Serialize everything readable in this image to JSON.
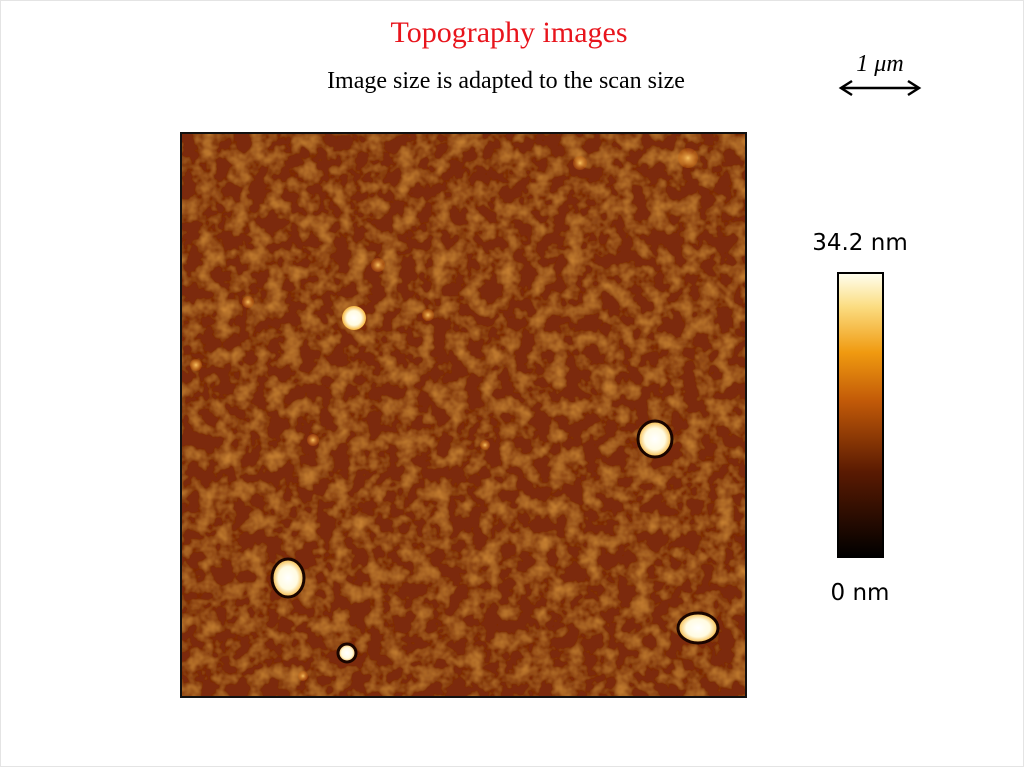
{
  "header": {
    "title": "Topography images",
    "subtitle": "Image size is adapted to the scan size"
  },
  "scale_bar": {
    "label": "1 μm"
  },
  "colorbar": {
    "max_label": "34.2 nm",
    "min_label": "0 nm"
  }
}
